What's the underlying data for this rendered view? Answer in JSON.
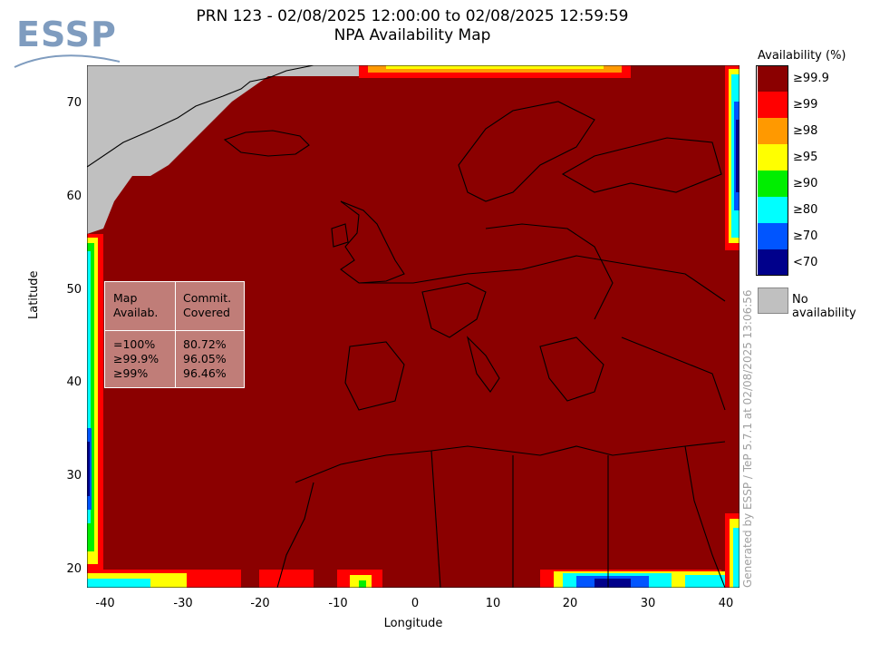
{
  "header": {
    "title_line1": "PRN 123 - 02/08/2025 12:00:00 to 02/08/2025 12:59:59",
    "title_line2": "NPA Availability Map",
    "logo_text": "ESSP"
  },
  "axes": {
    "xlabel": "Longitude",
    "ylabel": "Latitude",
    "x_ticks": [
      "-40",
      "-30",
      "-20",
      "-10",
      "0",
      "10",
      "20",
      "30",
      "40"
    ],
    "y_ticks": [
      "70",
      "60",
      "50",
      "40",
      "30",
      "20"
    ],
    "x_range": [
      -42,
      42
    ],
    "y_range": [
      18,
      74
    ]
  },
  "legend": {
    "title": "Availability (%)",
    "items": [
      {
        "label": "≥99.9",
        "color": "#8b0000"
      },
      {
        "label": "≥99",
        "color": "#ff0000"
      },
      {
        "label": "≥98",
        "color": "#ff9900"
      },
      {
        "label": "≥95",
        "color": "#ffff00"
      },
      {
        "label": "≥90",
        "color": "#00ee00"
      },
      {
        "label": "≥80",
        "color": "#00ffff"
      },
      {
        "label": "≥70",
        "color": "#0055ff"
      },
      {
        "label": "<70",
        "color": "#00008b"
      }
    ],
    "no_availability": {
      "label": "No availability",
      "color": "#c0c0c0"
    }
  },
  "stats_box": {
    "col1_header": [
      "Map",
      "Availab."
    ],
    "col2_header": [
      "Commit.",
      "Covered"
    ],
    "rows": [
      {
        "level": "=100%",
        "covered": "80.72%"
      },
      {
        "level": "≥99.9%",
        "covered": "96.05%"
      },
      {
        "level": "≥99%",
        "covered": "96.46%"
      }
    ]
  },
  "footer": {
    "generated": "Generated by ESSP / TeP 5.7.1 at 02/08/2025 13:06:56"
  }
}
